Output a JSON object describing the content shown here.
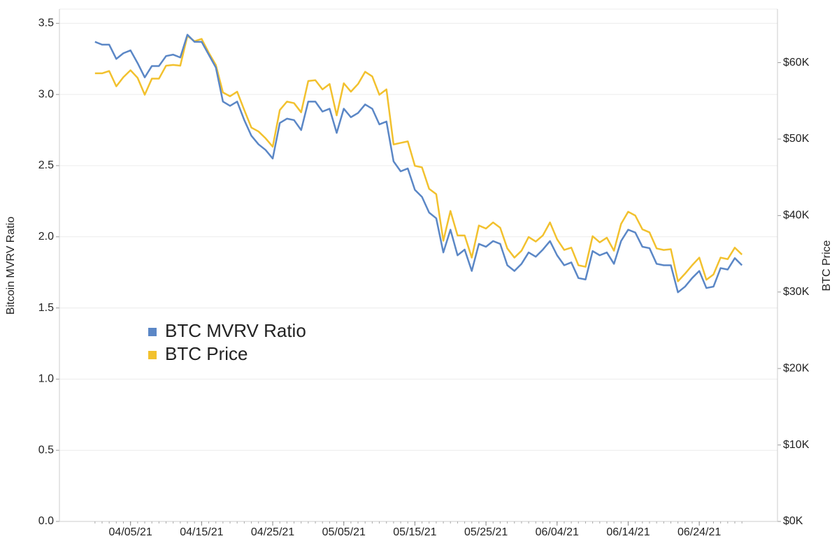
{
  "chart_data": {
    "type": "line",
    "x": [
      "03/31/21",
      "04/01/21",
      "04/02/21",
      "04/03/21",
      "04/04/21",
      "04/05/21",
      "04/06/21",
      "04/07/21",
      "04/08/21",
      "04/09/21",
      "04/10/21",
      "04/11/21",
      "04/12/21",
      "04/13/21",
      "04/14/21",
      "04/15/21",
      "04/16/21",
      "04/17/21",
      "04/18/21",
      "04/19/21",
      "04/20/21",
      "04/21/21",
      "04/22/21",
      "04/23/21",
      "04/24/21",
      "04/25/21",
      "04/26/21",
      "04/27/21",
      "04/28/21",
      "04/29/21",
      "04/30/21",
      "05/01/21",
      "05/02/21",
      "05/03/21",
      "05/04/21",
      "05/05/21",
      "05/06/21",
      "05/07/21",
      "05/08/21",
      "05/09/21",
      "05/10/21",
      "05/11/21",
      "05/12/21",
      "05/13/21",
      "05/14/21",
      "05/15/21",
      "05/16/21",
      "05/17/21",
      "05/18/21",
      "05/19/21",
      "05/20/21",
      "05/21/21",
      "05/22/21",
      "05/23/21",
      "05/24/21",
      "05/25/21",
      "05/26/21",
      "05/27/21",
      "05/28/21",
      "05/29/21",
      "05/30/21",
      "05/31/21",
      "06/01/21",
      "06/02/21",
      "06/03/21",
      "06/04/21",
      "06/05/21",
      "06/06/21",
      "06/07/21",
      "06/08/21",
      "06/09/21",
      "06/10/21",
      "06/11/21",
      "06/12/21",
      "06/13/21",
      "06/14/21",
      "06/15/21",
      "06/16/21",
      "06/17/21",
      "06/18/21",
      "06/19/21",
      "06/20/21",
      "06/21/21",
      "06/22/21",
      "06/23/21",
      "06/24/21",
      "06/25/21",
      "06/26/21",
      "06/27/21",
      "06/28/21",
      "06/29/21",
      "06/30/21"
    ],
    "series": [
      {
        "name": "BTC MVRV Ratio",
        "color": "#5b87c6",
        "axis": "y",
        "values": [
          3.37,
          3.35,
          3.35,
          3.25,
          3.29,
          3.31,
          3.22,
          3.12,
          3.2,
          3.2,
          3.27,
          3.28,
          3.26,
          3.42,
          3.37,
          3.37,
          3.28,
          3.19,
          2.95,
          2.92,
          2.95,
          2.82,
          2.71,
          2.65,
          2.61,
          2.55,
          2.8,
          2.83,
          2.82,
          2.75,
          2.95,
          2.95,
          2.88,
          2.9,
          2.73,
          2.9,
          2.84,
          2.87,
          2.93,
          2.9,
          2.79,
          2.81,
          2.53,
          2.46,
          2.48,
          2.33,
          2.28,
          2.17,
          2.13,
          1.89,
          2.05,
          1.87,
          1.91,
          1.76,
          1.95,
          1.93,
          1.97,
          1.95,
          1.8,
          1.76,
          1.81,
          1.89,
          1.86,
          1.91,
          1.97,
          1.87,
          1.8,
          1.82,
          1.71,
          1.7,
          1.9,
          1.87,
          1.89,
          1.81,
          1.97,
          2.05,
          2.03,
          1.93,
          1.92,
          1.81,
          1.8,
          1.8,
          1.61,
          1.65,
          1.71,
          1.76,
          1.64,
          1.65,
          1.78,
          1.77,
          1.85,
          1.8
        ]
      },
      {
        "name": "BTC Price",
        "color": "#f2c12e",
        "axis": "y2",
        "values": [
          58600,
          58600,
          58900,
          56900,
          58100,
          59000,
          58000,
          55800,
          57900,
          57900,
          59600,
          59700,
          59600,
          63500,
          62800,
          63100,
          61300,
          59700,
          56100,
          55600,
          56200,
          53800,
          51500,
          51000,
          50100,
          49000,
          53800,
          54900,
          54700,
          53500,
          57600,
          57700,
          56500,
          57200,
          53100,
          57300,
          56200,
          57200,
          58800,
          58200,
          55800,
          56500,
          49300,
          49500,
          49700,
          46500,
          46300,
          43500,
          42800,
          36700,
          40600,
          37400,
          37400,
          34500,
          38700,
          38300,
          39100,
          38400,
          35700,
          34500,
          35400,
          37200,
          36600,
          37400,
          39100,
          36900,
          35500,
          35800,
          33500,
          33300,
          37300,
          36500,
          37100,
          35400,
          38900,
          40500,
          40000,
          38200,
          37800,
          35700,
          35500,
          35600,
          31400,
          32400,
          33500,
          34500,
          31600,
          32300,
          34500,
          34300,
          35800,
          34900
        ]
      }
    ],
    "y_label": "Bitcoin MVRV Ratio",
    "y2_label": "BTC Price",
    "xlim": [
      "03/26/21",
      "07/05/21"
    ],
    "xticks": [
      "04/05/21",
      "04/15/21",
      "04/25/21",
      "05/05/21",
      "05/15/21",
      "05/25/21",
      "06/04/21",
      "06/14/21",
      "06/24/21"
    ],
    "ylim": [
      0,
      3.6
    ],
    "yticks": [
      {
        "value": 0,
        "label": "0.0"
      },
      0.5,
      {
        "value": 1,
        "label": "1.0"
      },
      1.5,
      {
        "value": 2,
        "label": "2.0"
      },
      2.5,
      {
        "value": 3,
        "label": "3.0"
      },
      3.5
    ],
    "y2lim": [
      0,
      67000
    ],
    "y2ticks": [
      {
        "value": 0,
        "label": "$0K"
      },
      {
        "value": 10000,
        "label": "$10K"
      },
      {
        "value": 20000,
        "label": "$20K"
      },
      {
        "value": 30000,
        "label": "$30K"
      },
      {
        "value": 40000,
        "label": "$40K"
      },
      {
        "value": 50000,
        "label": "$50K"
      },
      {
        "value": 60000,
        "label": "$60K"
      }
    ],
    "grid": true,
    "legend": "left"
  }
}
